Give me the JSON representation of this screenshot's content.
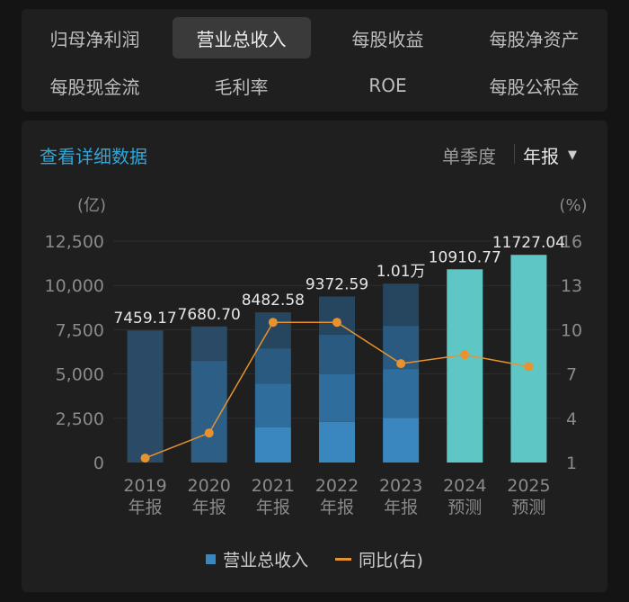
{
  "tabs": [
    {
      "label": "归母净利润",
      "active": false
    },
    {
      "label": "营业总收入",
      "active": true
    },
    {
      "label": "每股收益",
      "active": false
    },
    {
      "label": "每股净资产",
      "active": false
    },
    {
      "label": "每股现金流",
      "active": false
    },
    {
      "label": "毛利率",
      "active": false
    },
    {
      "label": "ROE",
      "active": false
    },
    {
      "label": "每股公积金",
      "active": false
    }
  ],
  "controls": {
    "detail_link": "查看详细数据",
    "single_quarter": "单季度",
    "annual": "年报",
    "caret": "▼"
  },
  "colors": {
    "bar_base": "#2a4a66",
    "bar_mid": "#2d5f86",
    "bar_light": "#3a87c0",
    "bar_forecast": "#5ec7c6",
    "line": "#e8922e",
    "link": "#2fa5d8"
  },
  "chart_data": {
    "type": "bar",
    "left_unit": "(亿)",
    "right_unit": "(%)",
    "categories": [
      {
        "year": "2019",
        "tag": "年报"
      },
      {
        "year": "2020",
        "tag": "年报"
      },
      {
        "year": "2021",
        "tag": "年报"
      },
      {
        "year": "2022",
        "tag": "年报"
      },
      {
        "year": "2023",
        "tag": "年报"
      },
      {
        "year": "2024",
        "tag": "预测"
      },
      {
        "year": "2025",
        "tag": "预测"
      }
    ],
    "series": [
      {
        "name": "营业总收入",
        "axis": "left",
        "values": [
          7459.17,
          7680.7,
          8482.58,
          9372.59,
          10100,
          10910.77,
          11727.04
        ],
        "labels": [
          "7459.17",
          "7680.70",
          "8482.58",
          "9372.59",
          "1.01万",
          "10910.77",
          "11727.04"
        ],
        "forecast": [
          false,
          false,
          false,
          false,
          false,
          true,
          true
        ],
        "quarter_segments": [
          [
            7459.17
          ],
          [
            5750,
            7680.7
          ],
          [
            2000,
            4450,
            6450,
            8482.58
          ],
          [
            2300,
            4980,
            7220,
            9372.59
          ],
          [
            2520,
            5280,
            7720,
            10100
          ],
          [
            10910.77
          ],
          [
            11727.04
          ]
        ]
      },
      {
        "name": "同比(右)",
        "axis": "right",
        "values": [
          1.3,
          3.0,
          10.5,
          10.5,
          7.7,
          8.3,
          7.5
        ]
      }
    ],
    "left_ticks": [
      "0",
      "2,500",
      "5,000",
      "7,500",
      "10,000",
      "12,500"
    ],
    "left_range": [
      0,
      12500
    ],
    "right_ticks": [
      "1",
      "4",
      "7",
      "10",
      "13",
      "16"
    ],
    "right_range": [
      1,
      16
    ],
    "grid": true,
    "legend": "bottom-center"
  }
}
